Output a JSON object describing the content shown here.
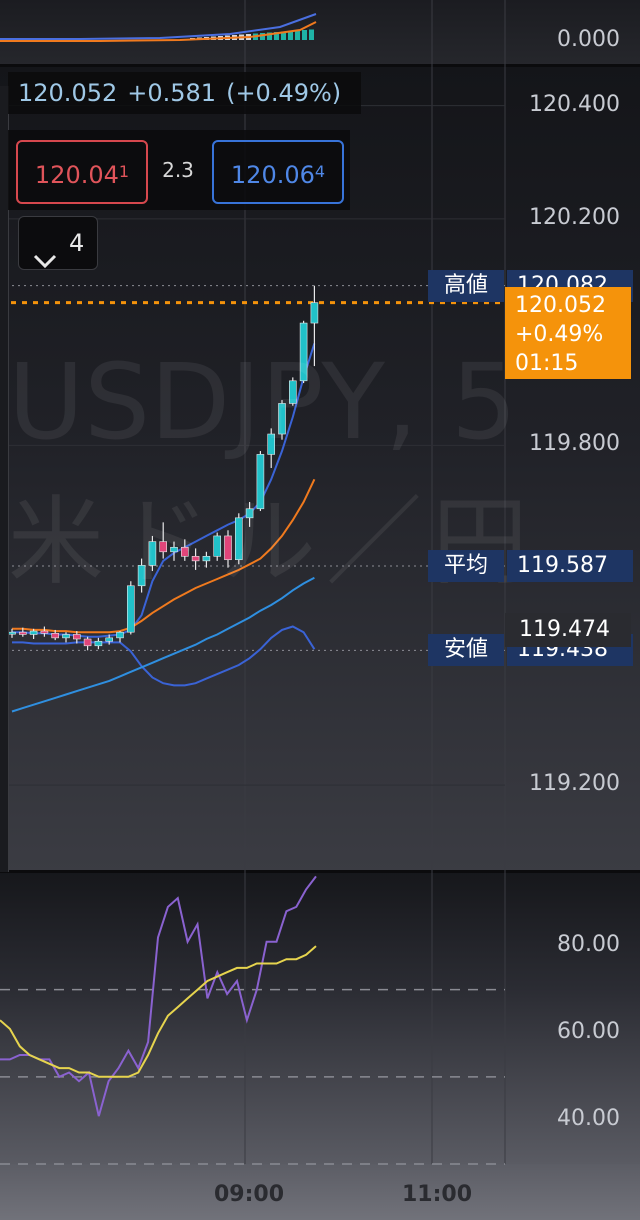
{
  "chart_data": [
    {
      "type": "bar",
      "title": "",
      "pane": "volume/oscillator",
      "axis_labels": [
        "0.000"
      ],
      "ylim": [
        0,
        1
      ]
    },
    {
      "type": "candlestick",
      "title": "",
      "symbol_watermark": "USDJPY, 5",
      "symbol_watermark_jp": "米ドル／円",
      "ylim": [
        119.05,
        120.47
      ],
      "y_tick_labels": [
        "120.400",
        "120.200",
        "119.800",
        "119.200"
      ],
      "y_ticks": [
        120.4,
        120.2,
        119.8,
        119.2
      ],
      "x_tick_labels": [
        "09:00",
        "11:00"
      ],
      "grid": true,
      "candles": [
        {
          "o": 119.468,
          "h": 119.476,
          "l": 119.46,
          "c": 119.47
        },
        {
          "o": 119.47,
          "h": 119.478,
          "l": 119.462,
          "c": 119.466
        },
        {
          "o": 119.466,
          "h": 119.476,
          "l": 119.458,
          "c": 119.472
        },
        {
          "o": 119.472,
          "h": 119.48,
          "l": 119.462,
          "c": 119.468
        },
        {
          "o": 119.468,
          "h": 119.474,
          "l": 119.456,
          "c": 119.46
        },
        {
          "o": 119.46,
          "h": 119.47,
          "l": 119.452,
          "c": 119.466
        },
        {
          "o": 119.466,
          "h": 119.472,
          "l": 119.45,
          "c": 119.458
        },
        {
          "o": 119.458,
          "h": 119.462,
          "l": 119.438,
          "c": 119.446
        },
        {
          "o": 119.446,
          "h": 119.46,
          "l": 119.44,
          "c": 119.454
        },
        {
          "o": 119.454,
          "h": 119.466,
          "l": 119.448,
          "c": 119.46
        },
        {
          "o": 119.46,
          "h": 119.472,
          "l": 119.452,
          "c": 119.47
        },
        {
          "o": 119.47,
          "h": 119.56,
          "l": 119.466,
          "c": 119.552
        },
        {
          "o": 119.552,
          "h": 119.6,
          "l": 119.54,
          "c": 119.588
        },
        {
          "o": 119.588,
          "h": 119.64,
          "l": 119.578,
          "c": 119.63
        },
        {
          "o": 119.63,
          "h": 119.664,
          "l": 119.6,
          "c": 119.612
        },
        {
          "o": 119.612,
          "h": 119.63,
          "l": 119.596,
          "c": 119.62
        },
        {
          "o": 119.62,
          "h": 119.634,
          "l": 119.596,
          "c": 119.604
        },
        {
          "o": 119.604,
          "h": 119.618,
          "l": 119.58,
          "c": 119.596
        },
        {
          "o": 119.596,
          "h": 119.612,
          "l": 119.584,
          "c": 119.604
        },
        {
          "o": 119.604,
          "h": 119.646,
          "l": 119.596,
          "c": 119.64
        },
        {
          "o": 119.64,
          "h": 119.65,
          "l": 119.584,
          "c": 119.598
        },
        {
          "o": 119.598,
          "h": 119.68,
          "l": 119.59,
          "c": 119.672
        },
        {
          "o": 119.672,
          "h": 119.7,
          "l": 119.656,
          "c": 119.688
        },
        {
          "o": 119.688,
          "h": 119.79,
          "l": 119.684,
          "c": 119.784
        },
        {
          "o": 119.784,
          "h": 119.83,
          "l": 119.76,
          "c": 119.82
        },
        {
          "o": 119.82,
          "h": 119.88,
          "l": 119.81,
          "c": 119.874
        },
        {
          "o": 119.874,
          "h": 119.92,
          "l": 119.87,
          "c": 119.914
        },
        {
          "o": 119.914,
          "h": 120.02,
          "l": 119.91,
          "c": 120.016
        },
        {
          "o": 120.016,
          "h": 120.082,
          "l": 119.94,
          "c": 120.052
        }
      ],
      "overlays": [
        {
          "name": "",
          "color": "#3a63d6",
          "values": [
            119.47,
            119.47,
            119.468,
            119.468,
            119.466,
            119.466,
            119.464,
            119.462,
            119.462,
            119.464,
            119.466,
            119.474,
            119.5,
            119.56,
            119.596,
            119.61,
            119.62,
            119.63,
            119.64,
            119.65,
            119.66,
            119.668,
            119.68,
            119.7,
            119.74,
            119.79,
            119.85,
            119.92,
            119.98
          ]
        },
        {
          "name": "",
          "color": "#f07a1e",
          "values": [
            119.476,
            119.476,
            119.474,
            119.474,
            119.472,
            119.472,
            119.47,
            119.47,
            119.47,
            119.47,
            119.472,
            119.478,
            119.49,
            119.504,
            119.516,
            119.528,
            119.538,
            119.548,
            119.556,
            119.564,
            119.572,
            119.58,
            119.59,
            119.6,
            119.618,
            119.64,
            119.668,
            119.7,
            119.74
          ]
        },
        {
          "name": "",
          "color": "#3a63d6",
          "values": [
            119.452,
            119.452,
            119.45,
            119.45,
            119.45,
            119.45,
            119.452,
            119.452,
            119.452,
            119.452,
            119.452,
            119.436,
            119.41,
            119.39,
            119.38,
            119.376,
            119.376,
            119.38,
            119.388,
            119.396,
            119.404,
            119.412,
            119.424,
            119.44,
            119.46,
            119.474,
            119.48,
            119.47,
            119.44
          ]
        },
        {
          "name": "",
          "color": "#2f8fe0",
          "values": [
            119.33,
            119.336,
            119.342,
            119.348,
            119.354,
            119.36,
            119.366,
            119.372,
            119.378,
            119.384,
            119.392,
            119.4,
            119.408,
            119.416,
            119.424,
            119.432,
            119.44,
            119.448,
            119.458,
            119.466,
            119.476,
            119.486,
            119.496,
            119.508,
            119.518,
            119.53,
            119.544,
            119.556,
            119.566
          ]
        }
      ],
      "high_label": "高値",
      "high_value": "120.082",
      "high": 120.082,
      "avg_label": "平均",
      "avg_value": "119.587",
      "avg": 119.587,
      "low_label": "安値",
      "low_value": "119.438",
      "low": 119.438,
      "ref_value": "119.474",
      "ref": 119.474,
      "current": 120.052,
      "current_price": "120.052",
      "current_change_pct": "+0.49%",
      "countdown": "01:15"
    },
    {
      "type": "line",
      "title": "",
      "ylim": [
        30,
        97
      ],
      "y_tick_labels": [
        "80.00",
        "60.00",
        "40.00"
      ],
      "y_ticks": [
        80,
        60,
        40
      ],
      "dashed_levels": [
        70,
        50,
        30
      ],
      "series": [
        {
          "name": "",
          "color": "#8a62d0",
          "values": [
            54,
            54,
            55,
            55,
            54,
            54,
            50,
            51,
            49,
            51,
            41,
            49,
            52,
            56,
            52,
            58,
            82,
            89,
            91,
            81,
            85,
            68,
            74,
            69,
            72,
            63,
            70,
            81,
            81,
            88,
            89,
            93,
            96
          ]
        },
        {
          "name": "",
          "color": "#e6d44e",
          "values": [
            63,
            61,
            57,
            55,
            54,
            53,
            52,
            52,
            51,
            51,
            50,
            50,
            50,
            50,
            51,
            55,
            60,
            64,
            66,
            68,
            70,
            72,
            73,
            74,
            75,
            75,
            76,
            76,
            76,
            77,
            77,
            78,
            80
          ]
        }
      ]
    }
  ],
  "quote": {
    "price": "120.052",
    "change": "+0.581",
    "change_pct": "(+0.49%)"
  },
  "bid": {
    "main": "120.04",
    "sup": "1"
  },
  "ask": {
    "main": "120.06",
    "sup": "4"
  },
  "spread": "2.3",
  "dropdown_count": "4"
}
